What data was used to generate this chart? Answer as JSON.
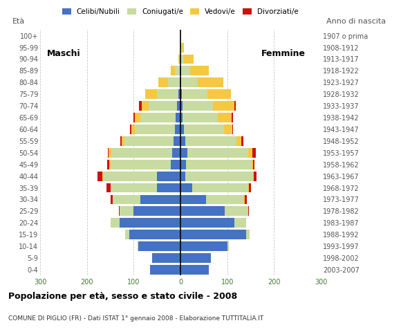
{
  "age_groups": [
    "0-4",
    "5-9",
    "10-14",
    "15-19",
    "20-24",
    "25-29",
    "30-34",
    "35-39",
    "40-44",
    "45-49",
    "50-54",
    "55-59",
    "60-64",
    "65-69",
    "70-74",
    "75-79",
    "80-84",
    "85-89",
    "90-94",
    "95-99",
    "100+"
  ],
  "birth_years": [
    "2003-2007",
    "1998-2002",
    "1993-1997",
    "1988-1992",
    "1983-1987",
    "1978-1982",
    "1973-1977",
    "1968-1972",
    "1963-1967",
    "1958-1962",
    "1953-1957",
    "1948-1952",
    "1943-1947",
    "1938-1942",
    "1933-1937",
    "1928-1932",
    "1923-1927",
    "1918-1922",
    "1913-1917",
    "1908-1912",
    "1907 o prima"
  ],
  "colors": {
    "celibe": "#4472c4",
    "coniugato": "#c8dba0",
    "vedovo": "#f5c842",
    "divorziato": "#cc1111"
  },
  "male": {
    "celibe": [
      65,
      60,
      90,
      110,
      130,
      100,
      85,
      50,
      50,
      20,
      18,
      15,
      12,
      10,
      8,
      5,
      2,
      2,
      0,
      0,
      0
    ],
    "coniugato": [
      0,
      0,
      2,
      8,
      20,
      30,
      60,
      100,
      115,
      130,
      130,
      105,
      85,
      75,
      60,
      45,
      25,
      10,
      3,
      0,
      0
    ],
    "vedovo": [
      0,
      0,
      0,
      0,
      0,
      0,
      0,
      0,
      2,
      2,
      5,
      5,
      8,
      12,
      15,
      25,
      20,
      8,
      2,
      0,
      0
    ],
    "divorziato": [
      0,
      0,
      0,
      0,
      0,
      2,
      5,
      8,
      10,
      5,
      2,
      3,
      3,
      3,
      5,
      0,
      0,
      0,
      0,
      0,
      0
    ]
  },
  "female": {
    "nubile": [
      60,
      65,
      100,
      140,
      115,
      95,
      55,
      25,
      10,
      12,
      15,
      10,
      8,
      5,
      5,
      3,
      2,
      2,
      0,
      0,
      0
    ],
    "coniugata": [
      0,
      0,
      3,
      8,
      25,
      50,
      80,
      120,
      145,
      140,
      130,
      110,
      85,
      75,
      65,
      55,
      35,
      18,
      8,
      3,
      0
    ],
    "vedova": [
      0,
      0,
      0,
      0,
      0,
      0,
      2,
      2,
      2,
      3,
      8,
      10,
      18,
      30,
      45,
      50,
      55,
      40,
      20,
      5,
      0
    ],
    "divorziata": [
      0,
      0,
      0,
      0,
      0,
      2,
      5,
      3,
      5,
      3,
      8,
      5,
      2,
      2,
      3,
      0,
      0,
      0,
      0,
      0,
      0
    ]
  },
  "xlim": 300,
  "title": "Popolazione per età, sesso e stato civile - 2008",
  "subtitle": "COMUNE DI PIGLIO (FR) - Dati ISTAT 1° gennaio 2008 - Elaborazione TUTTITALIA.IT",
  "label_left": "Maschi",
  "label_right": "Femmine",
  "ylabel_left": "Età",
  "ylabel_right": "Anno di nascita",
  "background_color": "#ffffff",
  "grid_color": "#bbbbbb"
}
